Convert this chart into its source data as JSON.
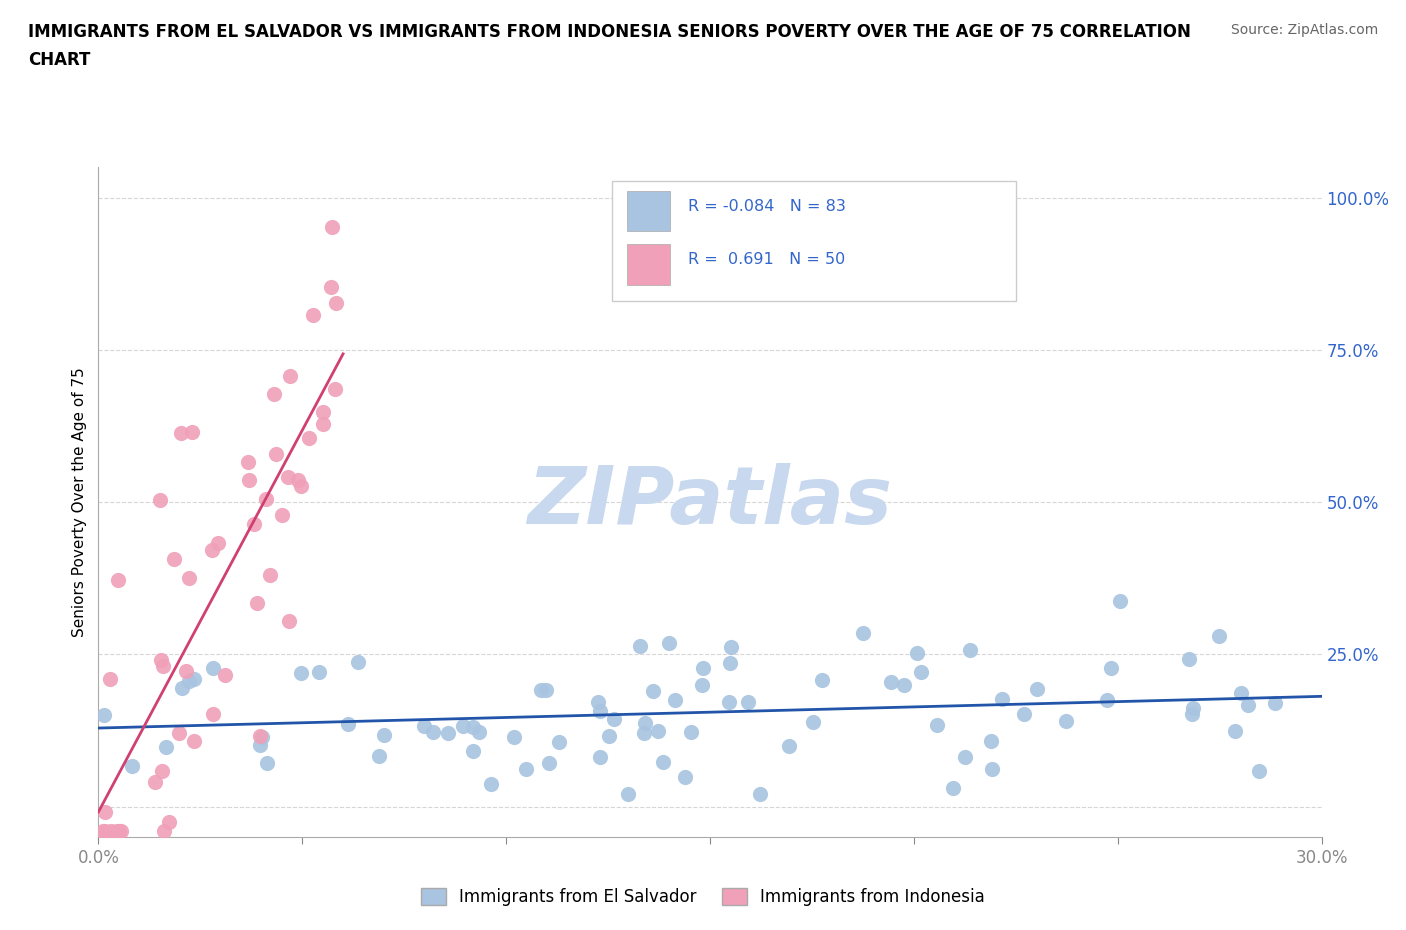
{
  "title_line1": "IMMIGRANTS FROM EL SALVADOR VS IMMIGRANTS FROM INDONESIA SENIORS POVERTY OVER THE AGE OF 75 CORRELATION",
  "title_line2": "CHART",
  "source": "Source: ZipAtlas.com",
  "ylabel": "Seniors Poverty Over the Age of 75",
  "xlim": [
    0.0,
    0.3
  ],
  "ylim": [
    -0.05,
    1.05
  ],
  "blue_color": "#a8c4e0",
  "pink_color": "#f0a0b8",
  "blue_line_color": "#2255aa",
  "pink_line_color": "#d04070",
  "r_blue": -0.084,
  "n_blue": 83,
  "r_pink": 0.691,
  "n_pink": 50,
  "watermark": "ZIPatlas",
  "watermark_color": "#c8d8ee",
  "legend_label_blue": "Immigrants from El Salvador",
  "legend_label_pink": "Immigrants from Indonesia"
}
